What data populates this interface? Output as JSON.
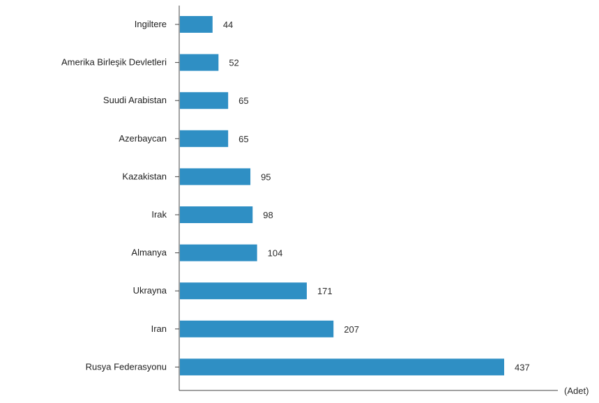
{
  "chart_data": {
    "type": "bar",
    "orientation": "horizontal",
    "categories": [
      "Ingiltere",
      "Amerika Birleşik Devletleri",
      "Suudi Arabistan",
      "Azerbaycan",
      "Kazakistan",
      "Irak",
      "Almanya",
      "Ukrayna",
      "Iran",
      "Rusya Federasyonu"
    ],
    "values": [
      44,
      52,
      65,
      65,
      95,
      98,
      104,
      171,
      207,
      437
    ],
    "unit_label": "(Adet)",
    "xlim": [
      0,
      470
    ],
    "grid": false,
    "colors": {
      "bar": "#2f8fc4",
      "axis": "#444444"
    }
  }
}
